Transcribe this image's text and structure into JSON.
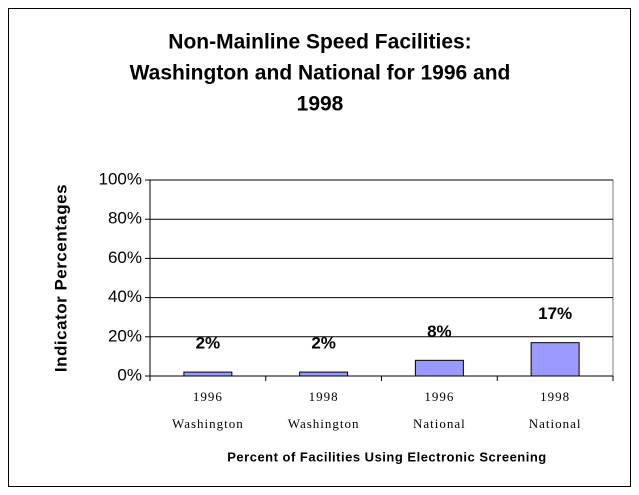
{
  "chart_data": {
    "type": "bar",
    "title": [
      "Non-Mainline Speed Facilities:",
      "Washington and National for 1996 and",
      "1998"
    ],
    "y_label": "Indicator Percentages",
    "x_label": "Percent of Facilities Using Electronic Screening",
    "categories": [
      [
        "1996",
        "Washington"
      ],
      [
        "1998",
        "Washington"
      ],
      [
        "1996",
        "National"
      ],
      [
        "1998",
        "National"
      ]
    ],
    "values": [
      2,
      2,
      8,
      17
    ],
    "value_labels": [
      "2%",
      "2%",
      "8%",
      "17%"
    ],
    "color": "#9999ff",
    "ylim": [
      0,
      100
    ],
    "yticks": [
      {
        "value": 0,
        "label": "0%"
      },
      {
        "value": 20,
        "label": "20%"
      },
      {
        "value": 40,
        "label": "40%"
      },
      {
        "value": 60,
        "label": "60%"
      },
      {
        "value": 80,
        "label": "80%"
      },
      {
        "value": 100,
        "label": "100%"
      }
    ],
    "grid": true
  }
}
